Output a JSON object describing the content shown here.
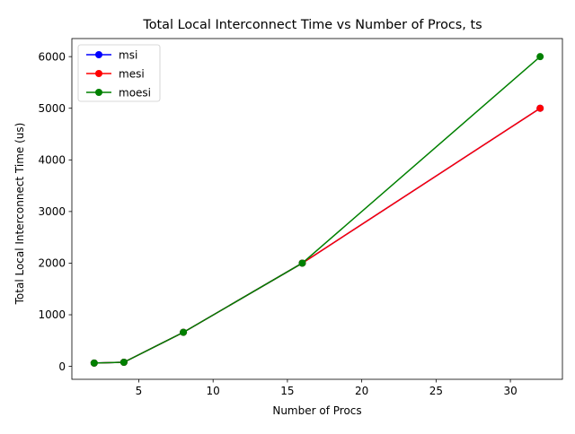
{
  "chart_data": {
    "type": "line",
    "title": "Total Local Interconnect Time vs Number of Procs, ts",
    "xlabel": "Number of Procs",
    "ylabel": "Total Local Interconnect Time (us)",
    "xlim": [
      0.5,
      33.5
    ],
    "ylim": [
      -250,
      6350
    ],
    "xticks": [
      5,
      10,
      15,
      20,
      25,
      30
    ],
    "yticks": [
      0,
      1000,
      2000,
      3000,
      4000,
      5000,
      6000
    ],
    "x": [
      2,
      4,
      8,
      16,
      32
    ],
    "series": [
      {
        "name": "msi",
        "color": "#0000ff",
        "values": [
          65,
          80,
          660,
          2000,
          5000
        ]
      },
      {
        "name": "mesi",
        "color": "#ff0000",
        "values": [
          65,
          80,
          660,
          2000,
          5000
        ]
      },
      {
        "name": "moesi",
        "color": "#008000",
        "values": [
          65,
          80,
          660,
          2000,
          6000
        ]
      }
    ],
    "grid": false,
    "legend_position": "upper-left"
  }
}
